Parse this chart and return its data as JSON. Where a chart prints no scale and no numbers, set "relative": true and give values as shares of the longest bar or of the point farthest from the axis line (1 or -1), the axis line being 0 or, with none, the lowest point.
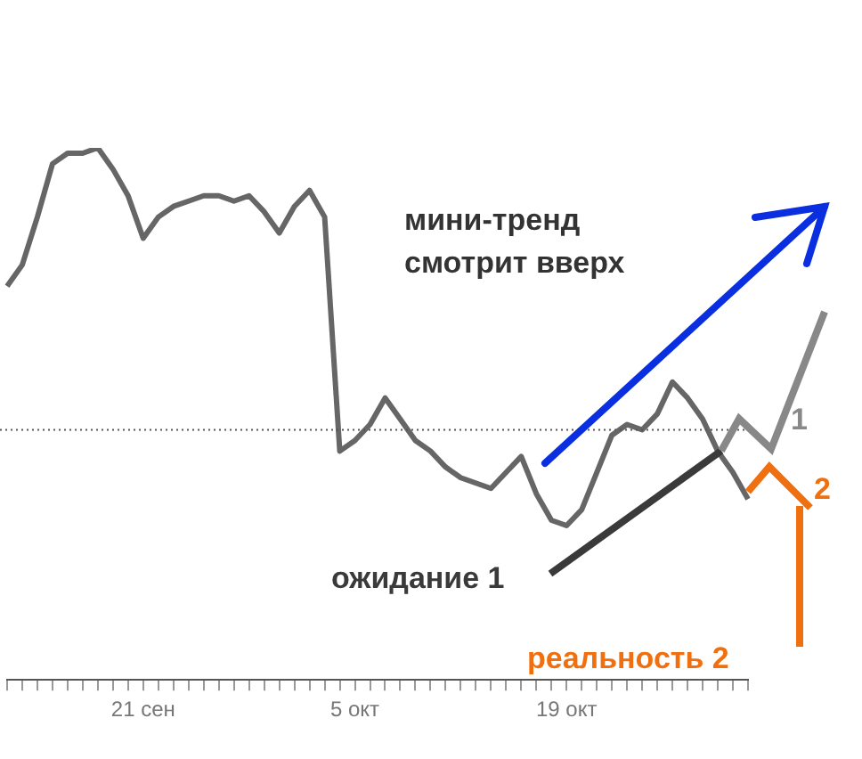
{
  "chart_data": {
    "type": "line",
    "relative": true,
    "categories": [
      null,
      null,
      null,
      null,
      null,
      null,
      null,
      null,
      null,
      "21 сен",
      null,
      null,
      null,
      null,
      null,
      null,
      null,
      null,
      null,
      null,
      null,
      null,
      null,
      "5 окт",
      null,
      null,
      null,
      null,
      null,
      null,
      null,
      null,
      null,
      null,
      null,
      null,
      null,
      "19 окт",
      null,
      null,
      null,
      null,
      null,
      null,
      null,
      null,
      null,
      null,
      null,
      null
    ],
    "series": [
      {
        "color": "#666666",
        "values": [
          0.74,
          0.78,
          0.87,
          0.97,
          0.99,
          0.99,
          1,
          0.96,
          0.91,
          0.83,
          0.87,
          0.89,
          0.9,
          0.91,
          0.91,
          0.9,
          0.91,
          0.88,
          0.84,
          0.89,
          0.92,
          0.87,
          0.43,
          0.45,
          0.48,
          0.53,
          0.49,
          0.45,
          0.43,
          0.4,
          0.38,
          0.37,
          0.36,
          0.39,
          0.42,
          0.35,
          0.3,
          0.29,
          0.32,
          0.39,
          0.46,
          0.48,
          0.47,
          0.5,
          0.56,
          0.53,
          0.49,
          0.43,
          0.39,
          0.34
        ]
      }
    ],
    "ref_lines": [
      {
        "axis": "y",
        "value": 0.47,
        "color": "#555555",
        "line_style": "dotted"
      }
    ],
    "marker": "none",
    "legend": false,
    "annotations": [
      "мини-тренд смотрит вверх",
      "ожидание 1",
      "1",
      "реальность 2",
      "2"
    ]
  }
}
